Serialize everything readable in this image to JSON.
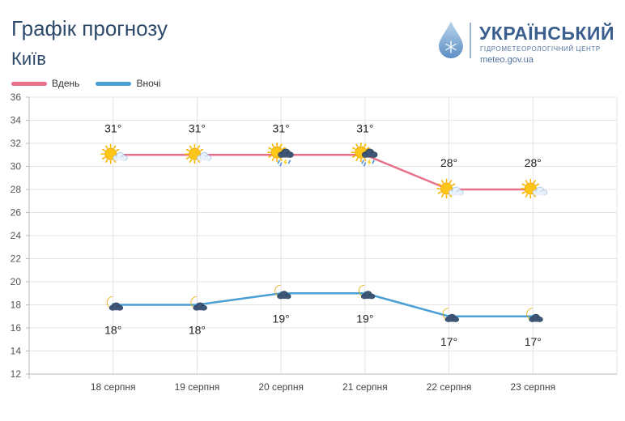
{
  "header": {
    "title": "Графік прогнозу",
    "city": "Київ"
  },
  "brand": {
    "name": "УКРАЇНСЬКИЙ",
    "subtitle": "ГІДРОМЕТЕОРОЛОГІЧНИЙ ЦЕНТР",
    "url": "meteo.gov.ua"
  },
  "colors": {
    "day": "#e8718a",
    "night": "#4a9fd5",
    "text_dark": "#2e4a6b"
  },
  "chart_data": {
    "type": "line",
    "categories": [
      "18 серпня",
      "19 серпня",
      "20 серпня",
      "21 серпня",
      "22 серпня",
      "23 серпня"
    ],
    "series": [
      {
        "name": "Вдень",
        "values": [
          31,
          31,
          31,
          31,
          28,
          28
        ],
        "labels": [
          "31°",
          "31°",
          "31°",
          "31°",
          "28°",
          "28°"
        ],
        "icons": [
          "sun-cloud-icon",
          "sun-cloud-icon",
          "sun-thunderstorm-icon",
          "sun-thunderstorm-icon",
          "sun-cloud-icon",
          "sun-cloud-icon"
        ]
      },
      {
        "name": "Вночі",
        "values": [
          18,
          18,
          19,
          19,
          17,
          17
        ],
        "labels": [
          "18°",
          "18°",
          "19°",
          "19°",
          "17°",
          "17°"
        ],
        "icons": [
          "moon-cloud-icon",
          "moon-cloud-icon",
          "moon-cloud-icon",
          "moon-cloud-icon",
          "moon-cloud-icon",
          "moon-cloud-icon"
        ]
      }
    ],
    "yticks": [
      12,
      14,
      16,
      18,
      20,
      22,
      24,
      26,
      28,
      30,
      32,
      34,
      36
    ],
    "ylim": [
      12,
      36
    ],
    "grid": true,
    "legend": "top-left"
  }
}
